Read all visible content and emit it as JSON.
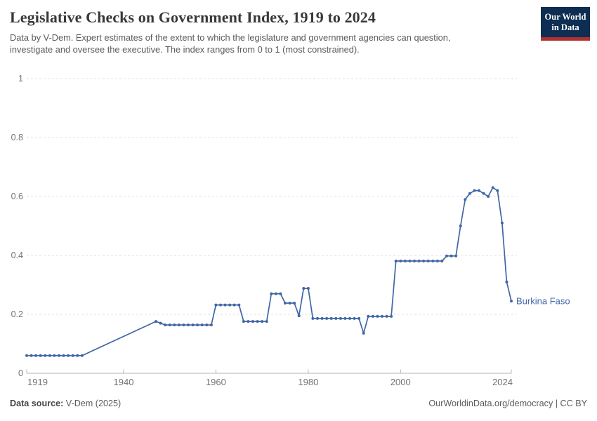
{
  "header": {
    "title": "Legislative Checks on Government Index, 1919 to 2024",
    "subtitle": "Data by V-Dem. Expert estimates of the extent to which the legislature and government agencies can question, investigate and oversee the executive. The index ranges from 0 to 1 (most constrained).",
    "logo_line1": "Our World",
    "logo_line2": "in Data"
  },
  "footer": {
    "source_label": "Data source:",
    "source_value": " V-Dem (2025)",
    "right_text": "OurWorldinData.org/democracy | CC BY"
  },
  "colors": {
    "line": "#4166a5",
    "end_label": "#4166a5",
    "grid": "#e0e0e0",
    "axis": "#b3b3b3",
    "tick_label": "#737373",
    "logo_navy": "#0d2d52",
    "logo_red": "#b0302f"
  },
  "chart_data": {
    "type": "line",
    "title": "Legislative Checks on Government Index, 1919 to 2024",
    "xlabel": "",
    "ylabel": "",
    "xlim": [
      1919,
      2024
    ],
    "ylim": [
      0,
      1
    ],
    "grid": "horizontal-dashed",
    "legend_position": "end-of-line-label",
    "x_ticks": [
      {
        "value": 1919,
        "label": "1919"
      },
      {
        "value": 1940,
        "label": "1940"
      },
      {
        "value": 1960,
        "label": "1960"
      },
      {
        "value": 1980,
        "label": "1980"
      },
      {
        "value": 2000,
        "label": "2000"
      },
      {
        "value": 2024,
        "label": "2024"
      }
    ],
    "y_ticks": [
      {
        "value": 0,
        "label": "0"
      },
      {
        "value": 0.2,
        "label": "0.2"
      },
      {
        "value": 0.4,
        "label": "0.4"
      },
      {
        "value": 0.6,
        "label": "0.6"
      },
      {
        "value": 0.8,
        "label": "0.8"
      },
      {
        "value": 1,
        "label": "1"
      }
    ],
    "series": [
      {
        "name": "Burkina Faso",
        "note": "no data 1932-1946; line connects 1931 to 1947 directly",
        "points": [
          [
            1919,
            0.06
          ],
          [
            1920,
            0.06
          ],
          [
            1921,
            0.06
          ],
          [
            1922,
            0.06
          ],
          [
            1923,
            0.06
          ],
          [
            1924,
            0.06
          ],
          [
            1925,
            0.06
          ],
          [
            1926,
            0.06
          ],
          [
            1927,
            0.06
          ],
          [
            1928,
            0.06
          ],
          [
            1929,
            0.06
          ],
          [
            1930,
            0.06
          ],
          [
            1931,
            0.06
          ],
          [
            1947,
            0.176
          ],
          [
            1948,
            0.17
          ],
          [
            1949,
            0.164
          ],
          [
            1950,
            0.164
          ],
          [
            1951,
            0.164
          ],
          [
            1952,
            0.164
          ],
          [
            1953,
            0.164
          ],
          [
            1954,
            0.164
          ],
          [
            1955,
            0.164
          ],
          [
            1956,
            0.164
          ],
          [
            1957,
            0.164
          ],
          [
            1958,
            0.164
          ],
          [
            1959,
            0.164
          ],
          [
            1960,
            0.232
          ],
          [
            1961,
            0.232
          ],
          [
            1962,
            0.232
          ],
          [
            1963,
            0.232
          ],
          [
            1964,
            0.232
          ],
          [
            1965,
            0.232
          ],
          [
            1966,
            0.176
          ],
          [
            1967,
            0.176
          ],
          [
            1968,
            0.176
          ],
          [
            1969,
            0.176
          ],
          [
            1970,
            0.176
          ],
          [
            1971,
            0.176
          ],
          [
            1972,
            0.27
          ],
          [
            1973,
            0.27
          ],
          [
            1974,
            0.27
          ],
          [
            1975,
            0.238
          ],
          [
            1976,
            0.238
          ],
          [
            1977,
            0.238
          ],
          [
            1978,
            0.195
          ],
          [
            1979,
            0.288
          ],
          [
            1980,
            0.288
          ],
          [
            1981,
            0.186
          ],
          [
            1982,
            0.186
          ],
          [
            1983,
            0.186
          ],
          [
            1984,
            0.186
          ],
          [
            1985,
            0.186
          ],
          [
            1986,
            0.186
          ],
          [
            1987,
            0.186
          ],
          [
            1988,
            0.186
          ],
          [
            1989,
            0.186
          ],
          [
            1990,
            0.186
          ],
          [
            1991,
            0.186
          ],
          [
            1992,
            0.136
          ],
          [
            1993,
            0.193
          ],
          [
            1994,
            0.193
          ],
          [
            1995,
            0.193
          ],
          [
            1996,
            0.193
          ],
          [
            1997,
            0.193
          ],
          [
            1998,
            0.193
          ],
          [
            1999,
            0.381
          ],
          [
            2000,
            0.381
          ],
          [
            2001,
            0.381
          ],
          [
            2002,
            0.381
          ],
          [
            2003,
            0.381
          ],
          [
            2004,
            0.381
          ],
          [
            2005,
            0.381
          ],
          [
            2006,
            0.381
          ],
          [
            2007,
            0.381
          ],
          [
            2008,
            0.381
          ],
          [
            2009,
            0.381
          ],
          [
            2010,
            0.398
          ],
          [
            2011,
            0.398
          ],
          [
            2012,
            0.398
          ],
          [
            2013,
            0.5
          ],
          [
            2014,
            0.59
          ],
          [
            2015,
            0.61
          ],
          [
            2016,
            0.62
          ],
          [
            2017,
            0.62
          ],
          [
            2018,
            0.61
          ],
          [
            2019,
            0.6
          ],
          [
            2020,
            0.63
          ],
          [
            2021,
            0.62
          ],
          [
            2022,
            0.51
          ],
          [
            2023,
            0.31
          ],
          [
            2024,
            0.245
          ]
        ]
      }
    ]
  }
}
